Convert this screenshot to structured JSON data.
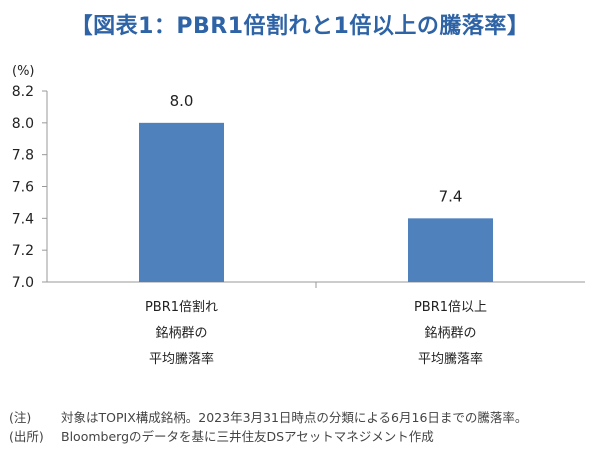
{
  "title": "【図表1：PBR1倍割れと1倍以上の騰落率】",
  "chart_data": {
    "type": "bar",
    "unit_label": "(%)",
    "categories": [
      [
        "PBR1倍割れ",
        "銘柄群の",
        "平均騰落率"
      ],
      [
        "PBR1倍以上",
        "銘柄群の",
        "平均騰落率"
      ]
    ],
    "values": [
      8.0,
      7.4
    ],
    "value_labels": [
      "8.0",
      "7.4"
    ],
    "ylim": [
      7.0,
      8.2
    ],
    "yticks": [
      7.0,
      7.2,
      7.4,
      7.6,
      7.8,
      8.0,
      8.2
    ],
    "ytick_labels": [
      "7.0",
      "7.2",
      "7.4",
      "7.6",
      "7.8",
      "8.0",
      "8.2"
    ],
    "bar_color": "#4f81bd",
    "grid": false
  },
  "notes": [
    {
      "tag": "(注)",
      "text": "対象はTOPIX構成銘柄。2023年3月31日時点の分類による6月16日までの騰落率。"
    },
    {
      "tag": "(出所)",
      "text": "Bloombergのデータを基に三井住友DSアセットマネジメント作成"
    }
  ]
}
